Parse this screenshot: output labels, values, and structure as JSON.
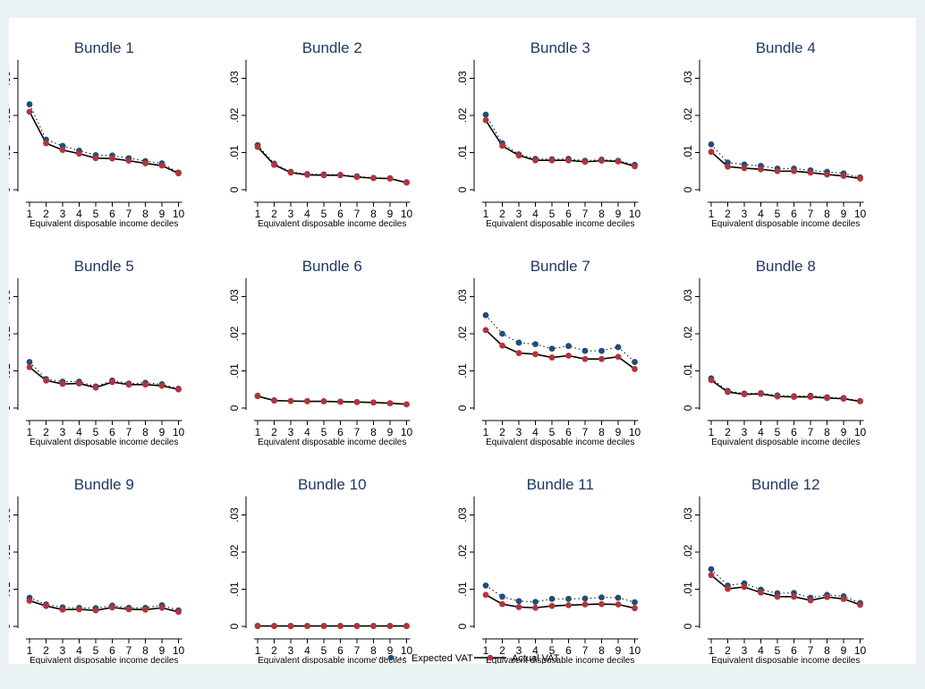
{
  "chart_data": {
    "type": "line",
    "layout": "small-multiples",
    "x_label": "Equivalent disposable income deciles",
    "x": [
      1,
      2,
      3,
      4,
      5,
      6,
      7,
      8,
      9,
      10
    ],
    "ylim": [
      0,
      0.035
    ],
    "y_ticks": [
      0,
      0.01,
      0.02,
      0.03
    ],
    "y_tick_labels": [
      "0",
      ".01",
      ".02",
      ".03"
    ],
    "grid": false,
    "legend": {
      "placement": "bottom-center",
      "entries": [
        "Expected VAT",
        "Actual VAT"
      ]
    },
    "colors": {
      "expected": "#1f4e79",
      "actual": "#b5333b",
      "line": "#000000",
      "title": "#1f3864",
      "background": "#eaf2f3"
    },
    "panels": [
      {
        "title": "Bundle 1",
        "expected": [
          0.023,
          0.0135,
          0.0118,
          0.0105,
          0.0093,
          0.0092,
          0.0085,
          0.0077,
          0.0071,
          0.0046
        ],
        "actual": [
          0.021,
          0.0125,
          0.0107,
          0.0097,
          0.0085,
          0.0084,
          0.0078,
          0.0071,
          0.0065,
          0.0044
        ]
      },
      {
        "title": "Bundle 2",
        "expected": [
          0.012,
          0.007,
          0.0048,
          0.0042,
          0.0041,
          0.004,
          0.0036,
          0.0032,
          0.0031,
          0.002
        ],
        "actual": [
          0.0115,
          0.0067,
          0.0046,
          0.004,
          0.0039,
          0.0039,
          0.0034,
          0.0031,
          0.003,
          0.0019
        ]
      },
      {
        "title": "Bundle 3",
        "expected": [
          0.0202,
          0.0125,
          0.0095,
          0.0083,
          0.0082,
          0.0083,
          0.0078,
          0.0081,
          0.0078,
          0.0067
        ],
        "actual": [
          0.0187,
          0.0118,
          0.0092,
          0.0079,
          0.0079,
          0.0079,
          0.0075,
          0.0078,
          0.0076,
          0.0063
        ]
      },
      {
        "title": "Bundle 4",
        "expected": [
          0.0122,
          0.0073,
          0.0068,
          0.0064,
          0.0057,
          0.0057,
          0.0052,
          0.0048,
          0.0044,
          0.0033
        ],
        "actual": [
          0.0102,
          0.0062,
          0.0058,
          0.0055,
          0.005,
          0.005,
          0.0046,
          0.0041,
          0.0037,
          0.003
        ]
      },
      {
        "title": "Bundle 5",
        "expected": [
          0.0124,
          0.0078,
          0.0071,
          0.0071,
          0.0058,
          0.0074,
          0.0066,
          0.0068,
          0.0064,
          0.0052
        ],
        "actual": [
          0.011,
          0.0074,
          0.0065,
          0.0066,
          0.0055,
          0.007,
          0.0063,
          0.0063,
          0.006,
          0.005
        ]
      },
      {
        "title": "Bundle 6",
        "expected": [
          0.0033,
          0.0021,
          0.0019,
          0.0019,
          0.0018,
          0.0017,
          0.0016,
          0.0015,
          0.0013,
          0.001
        ],
        "actual": [
          0.0032,
          0.002,
          0.0019,
          0.0018,
          0.0018,
          0.0017,
          0.0016,
          0.0015,
          0.0013,
          0.001
        ]
      },
      {
        "title": "Bundle 7",
        "expected": [
          0.025,
          0.02,
          0.0176,
          0.0172,
          0.016,
          0.0167,
          0.0154,
          0.0154,
          0.0164,
          0.0124
        ],
        "actual": [
          0.021,
          0.0168,
          0.0148,
          0.0145,
          0.0136,
          0.0141,
          0.0132,
          0.0132,
          0.0138,
          0.0105
        ]
      },
      {
        "title": "Bundle 8",
        "expected": [
          0.008,
          0.0046,
          0.0039,
          0.004,
          0.0034,
          0.0032,
          0.0033,
          0.0029,
          0.0027,
          0.0019
        ],
        "actual": [
          0.0075,
          0.0043,
          0.0037,
          0.0038,
          0.0031,
          0.003,
          0.003,
          0.0027,
          0.0025,
          0.0018
        ]
      },
      {
        "title": "Bundle 9",
        "expected": [
          0.0077,
          0.0059,
          0.0051,
          0.005,
          0.0049,
          0.0056,
          0.005,
          0.005,
          0.0057,
          0.0043
        ],
        "actual": [
          0.0069,
          0.0055,
          0.0045,
          0.0046,
          0.0043,
          0.0051,
          0.0046,
          0.0045,
          0.005,
          0.0039
        ]
      },
      {
        "title": "Bundle 10",
        "expected": [
          0.0001,
          0.0001,
          0.0001,
          0.0001,
          0.0001,
          0.0001,
          0.0001,
          0.0001,
          0.0001,
          0.0001
        ],
        "actual": [
          0.0001,
          0.0001,
          0.0001,
          0.0001,
          0.0001,
          0.0001,
          0.0001,
          0.0001,
          0.0001,
          0.0001
        ]
      },
      {
        "title": "Bundle 11",
        "expected": [
          0.011,
          0.008,
          0.0068,
          0.0066,
          0.0074,
          0.0074,
          0.0075,
          0.0078,
          0.0077,
          0.0065
        ],
        "actual": [
          0.0085,
          0.006,
          0.0052,
          0.005,
          0.0055,
          0.0057,
          0.0059,
          0.006,
          0.0059,
          0.0049
        ]
      },
      {
        "title": "Bundle 12",
        "expected": [
          0.0154,
          0.011,
          0.0116,
          0.0099,
          0.0089,
          0.009,
          0.0077,
          0.0085,
          0.0081,
          0.0063
        ],
        "actual": [
          0.0138,
          0.0101,
          0.0106,
          0.0091,
          0.008,
          0.008,
          0.007,
          0.0079,
          0.0074,
          0.0058
        ]
      }
    ]
  }
}
